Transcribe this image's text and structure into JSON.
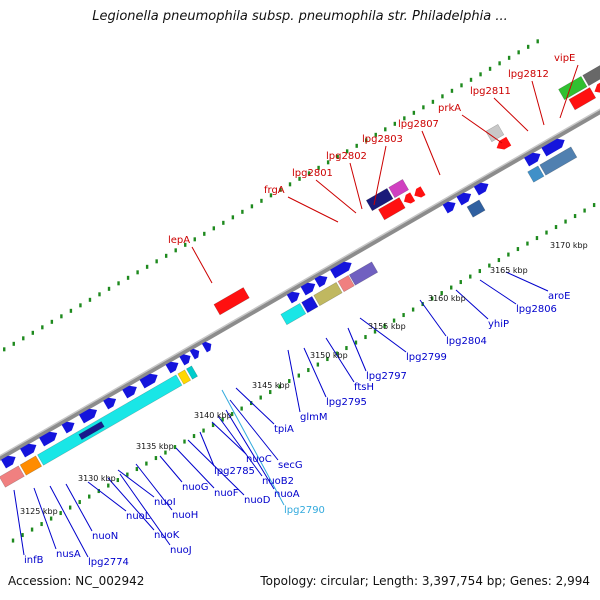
{
  "title": "Legionella pneumophila subsp. pneumophila str. Philadelphia ...",
  "footer": {
    "accession": "Accession: NC_002942",
    "stats": "Topology: circular; Length: 3,397,754 bp; Genes: 2,994"
  },
  "colors": {
    "backbone": "#8c8c8c",
    "dots": "#1e8a1e",
    "label_red": "#cc0000",
    "label_blue": "#0000cc",
    "label_cyan": "#33aadd",
    "gene_blue": "#1414dc",
    "gene_red": "#ff1010",
    "gene_cyan": "#19e6e6"
  },
  "ticks": [
    "3125 kbp",
    "3130 kbp",
    "3135 kbp",
    "3140 kbp",
    "3145 kbp",
    "3150 kbp",
    "3155 kbp",
    "3160 kbp",
    "3165 kbp",
    "3170 kbp"
  ],
  "upper_labels": [
    "lepA",
    "frgA",
    "lpg2801",
    "lpg2802",
    "lpg2803",
    "lpg2807",
    "prkA",
    "lpg2811",
    "lpg2812",
    "vipE"
  ],
  "lower_labels": [
    "infB",
    "nusA",
    "lpg2774",
    "nuoN",
    "nuoL",
    "nuoK",
    "nuoJ",
    "nuoI",
    "nuoH",
    "nuoG",
    "nuoF",
    "nuoD",
    "lpg2785",
    "nuoC",
    "nuoB2",
    "nuoA",
    "secG",
    "lpg2790",
    "tpiA",
    "glmM",
    "lpg2795",
    "ftsH",
    "lpg2797",
    "lpg2799",
    "lpg2804",
    "yhiP",
    "lpg2806",
    "aroE"
  ]
}
